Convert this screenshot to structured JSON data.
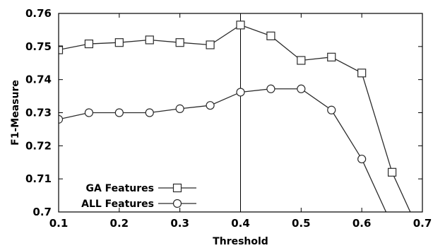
{
  "chart_data": {
    "type": "line",
    "xlabel": "Threshold",
    "ylabel": "F1-Measure",
    "xlim": [
      0.1,
      0.7
    ],
    "ylim": [
      0.7,
      0.76
    ],
    "x_ticks": [
      "0.1",
      "0.2",
      "0.3",
      "0.4",
      "0.5",
      "0.6",
      "0.7"
    ],
    "y_ticks": [
      "0.7",
      "0.71",
      "0.72",
      "0.73",
      "0.74",
      "0.75",
      "0.76"
    ],
    "grid": false,
    "legend_position": "bottom-left",
    "vertical_reference_line": 0.4,
    "series": [
      {
        "name": "GA Features",
        "marker": "square",
        "x": [
          0.1,
          0.15,
          0.2,
          0.25,
          0.3,
          0.35,
          0.4,
          0.45,
          0.5,
          0.55,
          0.6,
          0.65,
          0.68
        ],
        "y": [
          0.749,
          0.7508,
          0.7512,
          0.752,
          0.7512,
          0.7505,
          0.7565,
          0.7532,
          0.7458,
          0.7468,
          0.742,
          0.712,
          0.7
        ],
        "markers_drawn": 12
      },
      {
        "name": "ALL Features",
        "marker": "circle",
        "x": [
          0.1,
          0.15,
          0.2,
          0.25,
          0.3,
          0.35,
          0.4,
          0.45,
          0.5,
          0.55,
          0.6,
          0.64
        ],
        "y": [
          0.728,
          0.73,
          0.73,
          0.73,
          0.7312,
          0.7322,
          0.7362,
          0.7372,
          0.7372,
          0.7308,
          0.716,
          0.7
        ],
        "markers_drawn": 11
      }
    ]
  },
  "colors": {
    "line": "#2b2b2b",
    "axis": "#000000",
    "background": "#ffffff"
  }
}
